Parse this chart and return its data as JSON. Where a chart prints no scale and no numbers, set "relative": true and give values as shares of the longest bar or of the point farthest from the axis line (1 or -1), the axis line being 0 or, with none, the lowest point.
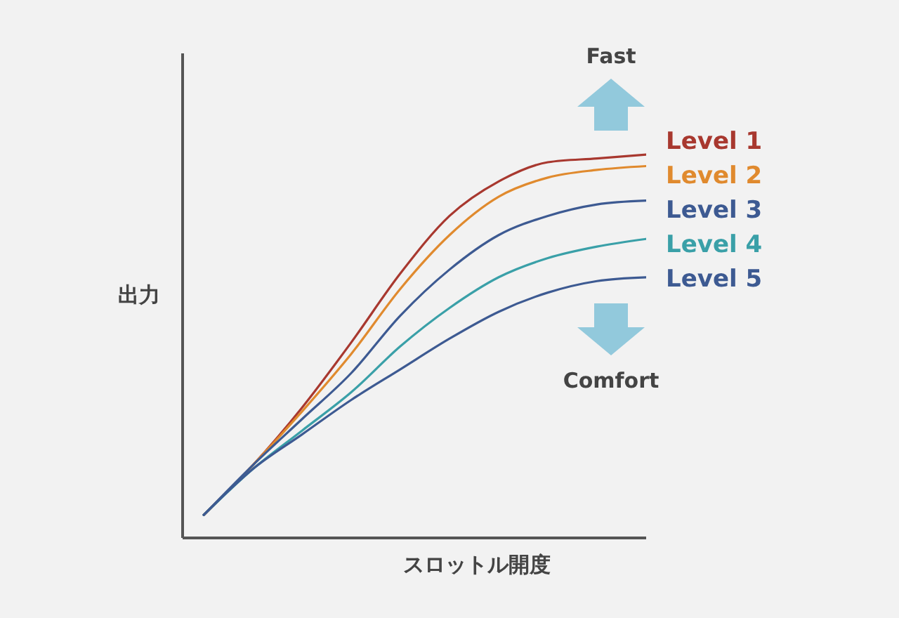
{
  "chart_data": {
    "type": "line",
    "relative": true,
    "xlabel": "スロットル開度",
    "ylabel": "出力",
    "annotations": [
      "Fast",
      "Comfort"
    ],
    "categories": [
      null,
      null,
      null,
      null,
      null,
      null,
      null,
      null,
      null,
      null
    ],
    "series": [
      {
        "name": "Level 1",
        "color": "#a8382f",
        "values": [
          0.06,
          0.19,
          0.34,
          0.51,
          0.69,
          0.84,
          0.93,
          0.98,
          0.99,
          1
        ]
      },
      {
        "name": "Level 2",
        "color": "#e08a2e",
        "values": [
          0.06,
          0.19,
          0.33,
          0.48,
          0.65,
          0.79,
          0.89,
          0.94,
          0.96,
          0.97
        ]
      },
      {
        "name": "Level 3",
        "color": "#3d5a92",
        "values": [
          0.06,
          0.19,
          0.31,
          0.43,
          0.58,
          0.7,
          0.79,
          0.84,
          0.87,
          0.88
        ]
      },
      {
        "name": "Level 4",
        "color": "#3aa0a8",
        "values": [
          0.06,
          0.18,
          0.28,
          0.38,
          0.5,
          0.6,
          0.68,
          0.73,
          0.76,
          0.78
        ]
      },
      {
        "name": "Level 5",
        "color": "#3d5a92",
        "values": [
          0.06,
          0.18,
          0.27,
          0.36,
          0.44,
          0.52,
          0.59,
          0.64,
          0.67,
          0.68
        ]
      }
    ]
  }
}
